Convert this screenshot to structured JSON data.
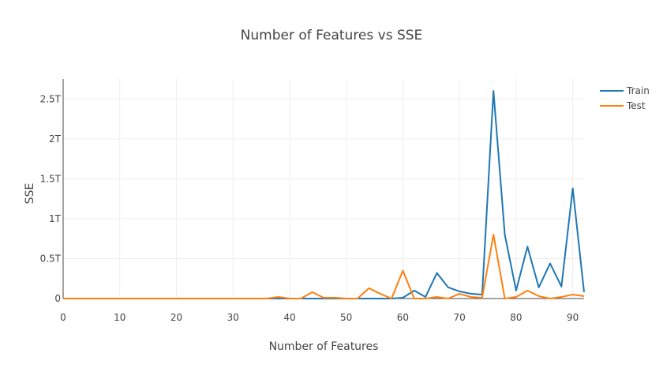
{
  "chart_data": {
    "type": "line",
    "title": "Number of Features vs SSE",
    "xlabel": "Number of Features",
    "ylabel": "SSE",
    "xlim": [
      0,
      92
    ],
    "ylim": [
      0,
      2.75
    ],
    "y_unit": "T",
    "grid": true,
    "legend_position": "top-right",
    "x_ticks": [
      {
        "value": 0,
        "label": "0"
      },
      {
        "value": 10,
        "label": "10"
      },
      {
        "value": 20,
        "label": "20"
      },
      {
        "value": 30,
        "label": "30"
      },
      {
        "value": 40,
        "label": "40"
      },
      {
        "value": 50,
        "label": "50"
      },
      {
        "value": 60,
        "label": "60"
      },
      {
        "value": 70,
        "label": "70"
      },
      {
        "value": 80,
        "label": "80"
      },
      {
        "value": 90,
        "label": "90"
      }
    ],
    "y_ticks": [
      {
        "value": 0,
        "label": "0"
      },
      {
        "value": 0.5,
        "label": "0.5T"
      },
      {
        "value": 1,
        "label": "1T"
      },
      {
        "value": 1.5,
        "label": "1.5T"
      },
      {
        "value": 2,
        "label": "2T"
      },
      {
        "value": 2.5,
        "label": "2.5T"
      }
    ],
    "x": [
      0,
      2,
      4,
      6,
      8,
      10,
      12,
      14,
      16,
      18,
      20,
      22,
      24,
      26,
      28,
      30,
      32,
      34,
      36,
      38,
      40,
      42,
      44,
      46,
      48,
      50,
      52,
      54,
      56,
      58,
      60,
      62,
      64,
      66,
      68,
      70,
      72,
      74,
      76,
      78,
      80,
      82,
      84,
      86,
      88,
      90,
      92
    ],
    "series": [
      {
        "name": "Train",
        "color": "#1f77b4",
        "values": [
          0,
          0,
          0,
          0,
          0,
          0,
          0,
          0,
          0,
          0,
          0,
          0,
          0,
          0,
          0,
          0,
          0,
          0,
          0,
          0,
          0,
          0,
          0,
          0,
          0,
          0,
          0,
          0,
          0,
          0,
          0.01,
          0.1,
          0.02,
          0.32,
          0.14,
          0.09,
          0.06,
          0.05,
          2.6,
          0.8,
          0.1,
          0.65,
          0.14,
          0.44,
          0.15,
          1.38,
          0.08
        ]
      },
      {
        "name": "Test",
        "color": "#ff7f0e",
        "values": [
          0,
          0,
          0,
          0,
          0,
          0,
          0,
          0,
          0,
          0,
          0,
          0,
          0,
          0,
          0,
          0,
          0,
          0,
          0,
          0.02,
          0,
          0,
          0.08,
          0.01,
          0.01,
          0,
          0,
          0.13,
          0.06,
          0,
          0.35,
          0,
          0,
          0.02,
          0,
          0.06,
          0.02,
          0.01,
          0.8,
          0,
          0.02,
          0.1,
          0.03,
          0,
          0.02,
          0.05,
          0.03
        ]
      }
    ]
  }
}
